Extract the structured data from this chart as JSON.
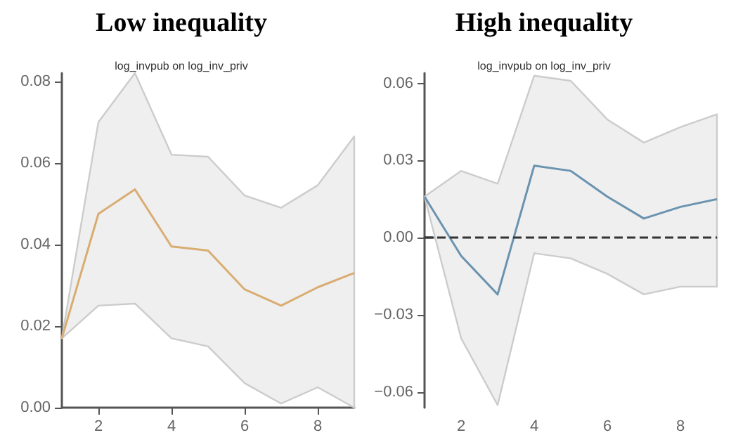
{
  "chart_data": [
    {
      "type": "line",
      "title": "Low inequality",
      "subtitle": "log_invpub on log_inv_priv",
      "x": [
        1,
        2,
        3,
        4,
        5,
        6,
        7,
        8,
        9
      ],
      "xlim": [
        1,
        9
      ],
      "xticks": [
        2,
        4,
        6,
        8
      ],
      "ylim": [
        0,
        0.082
      ],
      "yticks": [
        {
          "value": 0,
          "label": "0.00"
        },
        {
          "value": 0.02,
          "label": "0.02"
        },
        {
          "value": 0.04,
          "label": "0.04"
        },
        {
          "value": 0.06,
          "label": "0.06"
        },
        {
          "value": 0.08,
          "label": "0.08"
        }
      ],
      "grid": false,
      "marker": "none",
      "series": [
        {
          "color": "#d9ad72",
          "values": [
            0.017,
            0.0475,
            0.0535,
            0.0395,
            0.0385,
            0.029,
            0.025,
            0.0295,
            0.033
          ],
          "lower": [
            0.017,
            0.025,
            0.0255,
            0.017,
            0.015,
            0.006,
            0.001,
            0.005,
            0.0
          ],
          "upper": [
            0.017,
            0.07,
            0.082,
            0.062,
            0.0615,
            0.052,
            0.049,
            0.0545,
            0.0665
          ]
        }
      ]
    },
    {
      "type": "line",
      "title": "High inequality",
      "subtitle": "log_invpub on log_inv_priv",
      "x": [
        1,
        2,
        3,
        4,
        5,
        6,
        7,
        8,
        9
      ],
      "xlim": [
        1,
        9
      ],
      "xticks": [
        2,
        4,
        6,
        8
      ],
      "ylim": [
        -0.066,
        0.064
      ],
      "yticks": [
        {
          "value": -0.06,
          "label": "−0.06"
        },
        {
          "value": -0.03,
          "label": "−0.03"
        },
        {
          "value": 0,
          "label": "0.00"
        },
        {
          "value": 0.03,
          "label": "0.03"
        },
        {
          "value": 0.06,
          "label": "0.06"
        }
      ],
      "grid": false,
      "marker": "none",
      "ref_lines": [
        {
          "axis": "y",
          "value": 0,
          "color": "#333333",
          "line_style": "dashed"
        }
      ],
      "series": [
        {
          "color": "#6a93b0",
          "values": [
            0.016,
            -0.007,
            -0.022,
            0.028,
            0.026,
            0.016,
            0.0075,
            0.012,
            0.015
          ],
          "lower": [
            0.016,
            -0.039,
            -0.065,
            -0.006,
            -0.008,
            -0.014,
            -0.022,
            -0.019,
            -0.019
          ],
          "upper": [
            0.016,
            0.026,
            0.021,
            0.063,
            0.061,
            0.046,
            0.037,
            0.043,
            0.048
          ]
        }
      ]
    }
  ]
}
